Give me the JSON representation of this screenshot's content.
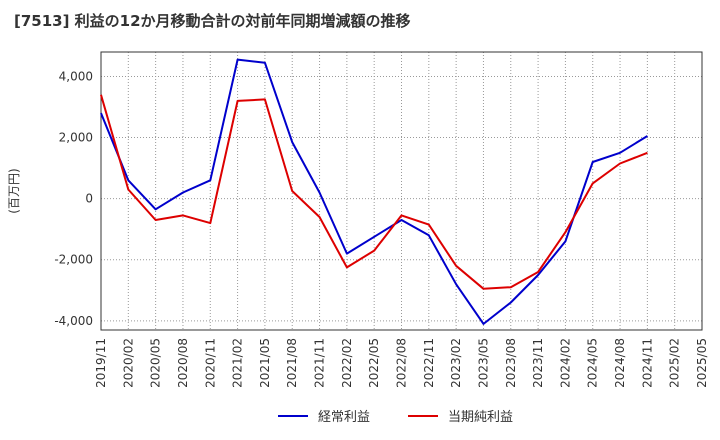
{
  "chart_data": {
    "type": "line",
    "title": "[7513]  利益の12か月移動合計の対前年同期増減額の推移",
    "ylabel": "(百万円)",
    "xlabel": "",
    "ylim": [
      -4300,
      4800
    ],
    "yticks": [
      4000,
      2000,
      0,
      -2000,
      -4000
    ],
    "ytick_labels": [
      "4,000",
      "2,000",
      "0",
      "-2,000",
      "-4,000"
    ],
    "categories": [
      "2019/11",
      "2020/02",
      "2020/05",
      "2020/08",
      "2020/11",
      "2021/02",
      "2021/05",
      "2021/08",
      "2021/11",
      "2022/02",
      "2022/05",
      "2022/08",
      "2022/11",
      "2023/02",
      "2023/05",
      "2023/08",
      "2023/11",
      "2024/02",
      "2024/05",
      "2024/08",
      "2024/11",
      "2025/02",
      "2025/05"
    ],
    "series": [
      {
        "name": "経常利益",
        "color": "#0000cc",
        "values": [
          2800,
          600,
          -350,
          200,
          600,
          4550,
          4450,
          1850,
          200,
          -1800,
          -1250,
          -700,
          -1200,
          -2800,
          -4100,
          -3400,
          -2500,
          -1400,
          1200,
          1500,
          2050,
          null,
          null
        ]
      },
      {
        "name": "当期純利益",
        "color": "#dd0000",
        "values": [
          3400,
          300,
          -700,
          -550,
          -800,
          3200,
          3250,
          250,
          -600,
          -2250,
          -1700,
          -550,
          -850,
          -2200,
          -2950,
          -2900,
          -2400,
          -1100,
          500,
          1150,
          1500,
          null,
          null
        ]
      }
    ],
    "legend_position": "bottom-center",
    "grid": true
  }
}
